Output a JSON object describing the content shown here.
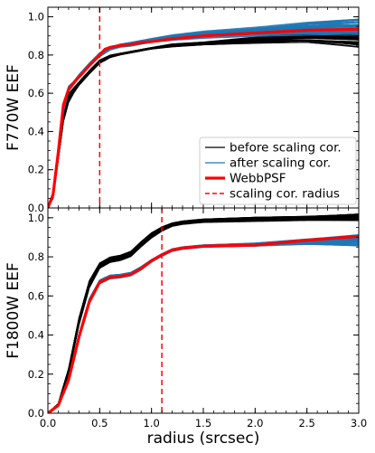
{
  "chart_data": [
    {
      "type": "line",
      "panel": "top",
      "xlabel": "",
      "ylabel": "F770W EEF",
      "xlim": [
        0,
        3.0
      ],
      "ylim": [
        0,
        1.05
      ],
      "x_ticks": [
        "0.0",
        "0.5",
        "1.0",
        "1.5",
        "2.0",
        "2.5",
        "3.0"
      ],
      "y_ticks": [
        "0.0",
        "0.2",
        "0.4",
        "0.6",
        "0.8",
        "1.0"
      ],
      "vline_x": 0.5,
      "series": [
        {
          "name": "before scaling cor.",
          "color": "#000000",
          "band": true,
          "x": [
            0.0,
            0.05,
            0.1,
            0.15,
            0.2,
            0.25,
            0.3,
            0.4,
            0.5,
            0.6,
            0.7,
            0.8,
            0.9,
            1.0,
            1.2,
            1.5,
            2.0,
            2.5,
            3.0
          ],
          "low": [
            0.0,
            0.05,
            0.25,
            0.45,
            0.55,
            0.6,
            0.64,
            0.7,
            0.755,
            0.785,
            0.8,
            0.81,
            0.82,
            0.83,
            0.84,
            0.85,
            0.855,
            0.86,
            0.84
          ],
          "high": [
            0.0,
            0.07,
            0.28,
            0.5,
            0.6,
            0.63,
            0.66,
            0.72,
            0.775,
            0.8,
            0.81,
            0.82,
            0.83,
            0.84,
            0.86,
            0.87,
            0.9,
            0.93,
            0.935
          ]
        },
        {
          "name": "after scaling cor.",
          "color": "#1f77b4",
          "band": true,
          "x": [
            0.0,
            0.05,
            0.1,
            0.15,
            0.2,
            0.25,
            0.3,
            0.4,
            0.5,
            0.6,
            0.7,
            0.8,
            0.9,
            1.0,
            1.2,
            1.5,
            2.0,
            2.5,
            3.0
          ],
          "low": [
            0.0,
            0.06,
            0.27,
            0.5,
            0.61,
            0.645,
            0.68,
            0.74,
            0.79,
            0.825,
            0.84,
            0.845,
            0.855,
            0.865,
            0.875,
            0.885,
            0.895,
            0.9,
            0.905
          ],
          "high": [
            0.0,
            0.08,
            0.3,
            0.55,
            0.64,
            0.665,
            0.7,
            0.76,
            0.815,
            0.845,
            0.86,
            0.87,
            0.88,
            0.89,
            0.91,
            0.93,
            0.95,
            0.975,
            0.99
          ]
        },
        {
          "name": "WebbPSF",
          "color": "#ff0000",
          "band": false,
          "x": [
            0.0,
            0.05,
            0.1,
            0.15,
            0.2,
            0.25,
            0.3,
            0.4,
            0.5,
            0.55,
            0.6,
            0.7,
            0.8,
            0.9,
            1.0,
            1.2,
            1.5,
            2.0,
            2.5,
            3.0
          ],
          "y": [
            0.0,
            0.07,
            0.29,
            0.54,
            0.62,
            0.655,
            0.685,
            0.745,
            0.8,
            0.83,
            0.84,
            0.85,
            0.855,
            0.865,
            0.87,
            0.885,
            0.9,
            0.915,
            0.93,
            0.935
          ]
        }
      ],
      "legend": {
        "placement": "lower-right",
        "entries": [
          {
            "label": "before scaling cor.",
            "color": "#000000",
            "style": "solid-thin"
          },
          {
            "label": "after scaling cor.",
            "color": "#1f77b4",
            "style": "solid-thin"
          },
          {
            "label": "WebbPSF",
            "color": "#ff0000",
            "style": "solid-thick"
          },
          {
            "label": "scaling cor. radius",
            "color": "#ff0000",
            "style": "dashed"
          }
        ]
      }
    },
    {
      "type": "line",
      "panel": "bottom",
      "xlabel": "radius (srcsec)",
      "ylabel": "F1800W EEF",
      "xlim": [
        0,
        3.0
      ],
      "ylim": [
        0,
        1.05
      ],
      "x_ticks": [
        "0.0",
        "0.5",
        "1.0",
        "1.5",
        "2.0",
        "2.5",
        "3.0"
      ],
      "y_ticks": [
        "0.0",
        "0.2",
        "0.4",
        "0.6",
        "0.8",
        "1.0"
      ],
      "vline_x": 1.1,
      "series": [
        {
          "name": "before scaling cor.",
          "color": "#000000",
          "band": true,
          "x": [
            0.0,
            0.1,
            0.2,
            0.3,
            0.4,
            0.5,
            0.6,
            0.7,
            0.8,
            0.9,
            1.0,
            1.1,
            1.2,
            1.3,
            1.5,
            2.0,
            2.5,
            3.0
          ],
          "low": [
            0.0,
            0.04,
            0.2,
            0.45,
            0.64,
            0.74,
            0.77,
            0.78,
            0.8,
            0.85,
            0.895,
            0.93,
            0.955,
            0.965,
            0.975,
            0.98,
            0.985,
            0.985
          ],
          "high": [
            0.0,
            0.05,
            0.23,
            0.49,
            0.68,
            0.77,
            0.8,
            0.81,
            0.83,
            0.88,
            0.925,
            0.955,
            0.975,
            0.985,
            0.995,
            1.005,
            1.01,
            1.02
          ]
        },
        {
          "name": "after scaling cor.",
          "color": "#1f77b4",
          "band": true,
          "x": [
            0.0,
            0.1,
            0.2,
            0.3,
            0.4,
            0.5,
            0.6,
            0.7,
            0.8,
            0.9,
            1.0,
            1.1,
            1.2,
            1.3,
            1.5,
            2.0,
            2.5,
            3.0
          ],
          "low": [
            0.0,
            0.035,
            0.16,
            0.38,
            0.56,
            0.66,
            0.685,
            0.69,
            0.7,
            0.73,
            0.77,
            0.8,
            0.825,
            0.835,
            0.845,
            0.85,
            0.86,
            0.855
          ],
          "high": [
            0.0,
            0.045,
            0.18,
            0.41,
            0.59,
            0.685,
            0.71,
            0.715,
            0.725,
            0.755,
            0.79,
            0.82,
            0.845,
            0.855,
            0.865,
            0.875,
            0.895,
            0.915
          ]
        },
        {
          "name": "WebbPSF",
          "color": "#ff0000",
          "band": false,
          "x": [
            0.0,
            0.1,
            0.2,
            0.3,
            0.4,
            0.5,
            0.6,
            0.7,
            0.8,
            0.9,
            1.0,
            1.1,
            1.2,
            1.3,
            1.5,
            2.0,
            2.5,
            3.0
          ],
          "y": [
            0.0,
            0.04,
            0.17,
            0.39,
            0.57,
            0.67,
            0.695,
            0.7,
            0.71,
            0.74,
            0.78,
            0.81,
            0.835,
            0.845,
            0.855,
            0.86,
            0.885,
            0.905
          ]
        }
      ]
    }
  ]
}
